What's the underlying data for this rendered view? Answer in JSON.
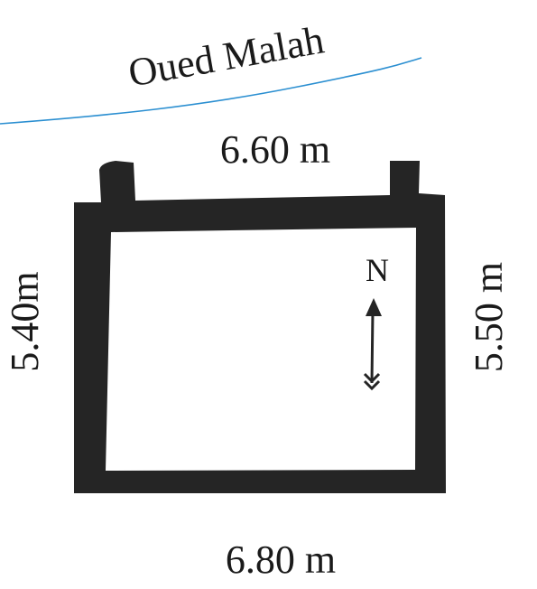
{
  "river": {
    "name": "Oued Malah",
    "color": "#2b8fd1"
  },
  "dimensions": {
    "top": "6.60 m",
    "bottom": "6.80 m",
    "left": "5.40m",
    "right": "5.50 m"
  },
  "north_arrow": {
    "label": "N"
  },
  "colors": {
    "wall": "#252525",
    "background": "#ffffff"
  }
}
